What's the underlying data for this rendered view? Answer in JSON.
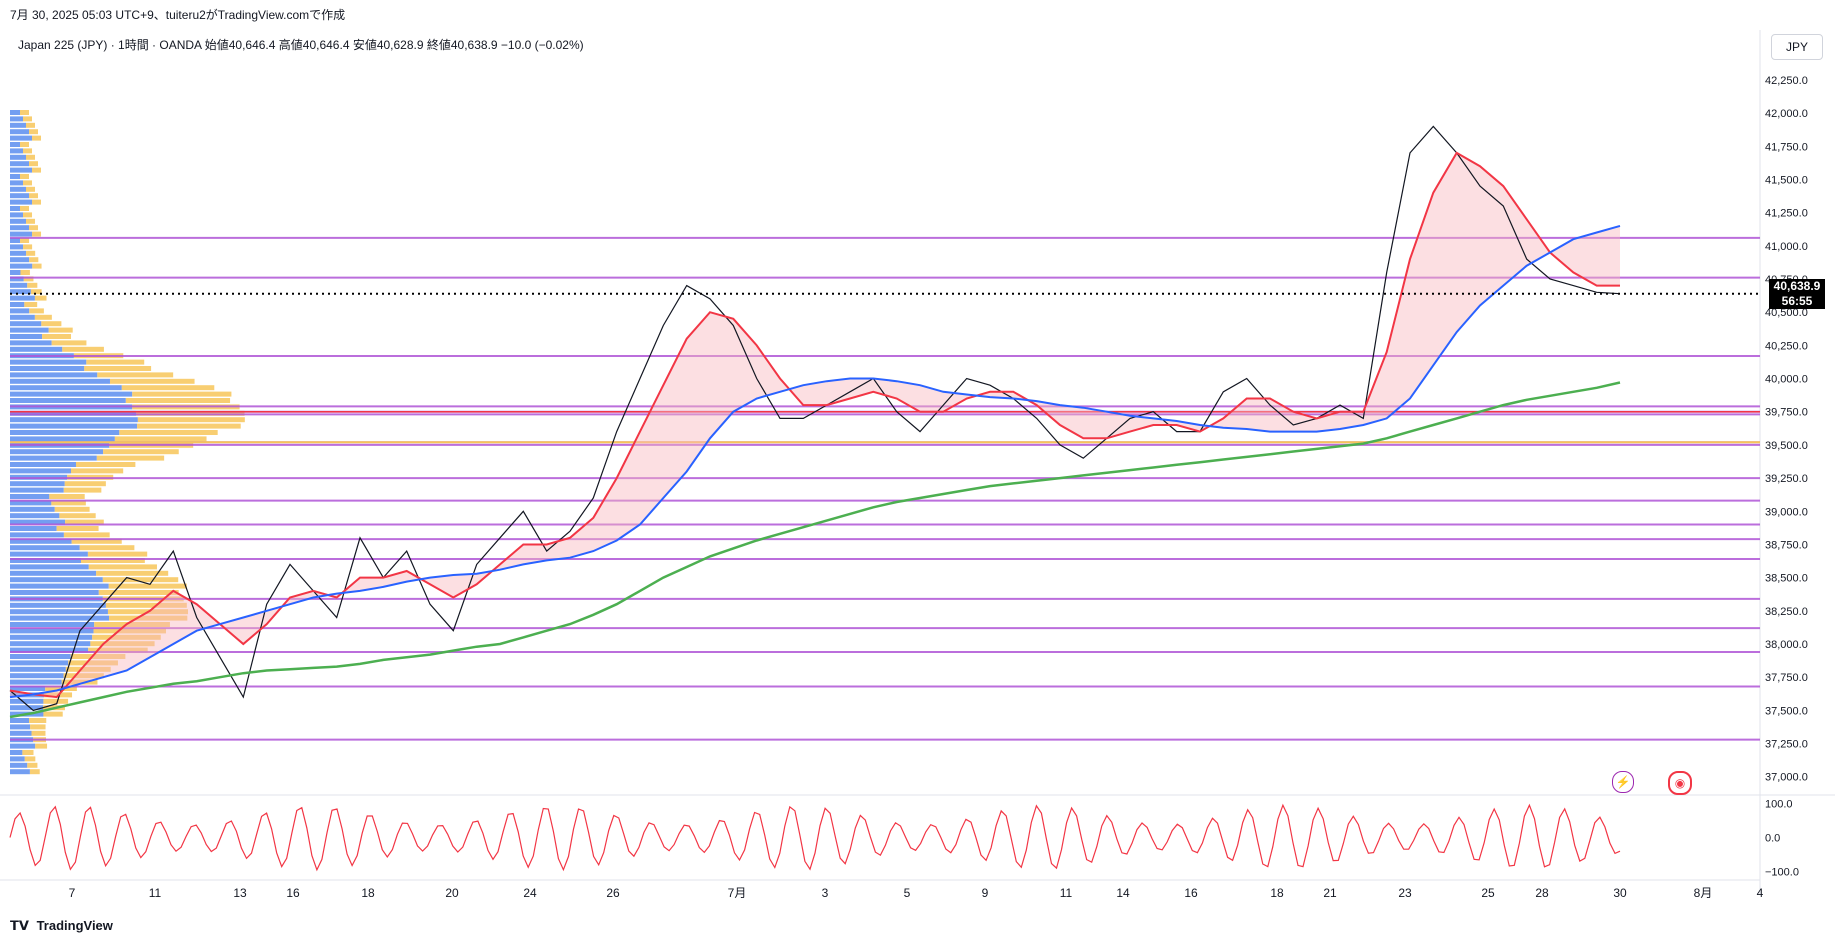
{
  "header": {
    "snapshot_line": "7月 30, 2025 05:03 UTC+9、tuiteru2がTradingView.comで作成",
    "symbol_line": "Japan 225 (JPY) · 1時間 · OANDA 始値40,646.4 高値40,646.4 安値40,628.9 終値40,638.9 −10.0 (−0.02%)",
    "currency": "JPY"
  },
  "last_price": {
    "value": "40,638.9",
    "countdown": "56:55"
  },
  "brand": {
    "name": "TradingView",
    "logo": "tv-logo"
  },
  "colors": {
    "ema_fast": "#f23645",
    "ema_mid": "#2962ff",
    "sma_long": "#4caf50",
    "hline": "#b055d6",
    "vp_buy": "#5b8def",
    "vp_sell": "#f7c559",
    "osc": "#f23645"
  },
  "chart_data": {
    "type": "line",
    "title": "",
    "xlabel": "",
    "ylabel": "",
    "y_ticks": [
      "42,250.0",
      "42,000.0",
      "41,750.0",
      "41,500.0",
      "41,250.0",
      "41,000.0",
      "40,750.0",
      "40,500.0",
      "40,250.0",
      "40,000.0",
      "39,750.0",
      "39,500.0",
      "39,250.0",
      "39,000.0",
      "38,750.0",
      "38,500.0",
      "38,250.0",
      "38,000.0",
      "37,750.0",
      "37,500.0",
      "37,250.0",
      "37,000.0"
    ],
    "ylim": [
      36900,
      42400
    ],
    "x_ticks": [
      "7",
      "11",
      "13",
      "16",
      "18",
      "20",
      "24",
      "26",
      "7月",
      "3",
      "5",
      "9",
      "11",
      "14",
      "16",
      "18",
      "21",
      "23",
      "25",
      "28",
      "30",
      "8月",
      "4"
    ],
    "series": [
      {
        "values": [
          37650,
          37500,
          37550,
          38100,
          38300,
          38500,
          38450,
          38700,
          38200,
          37900,
          37600,
          38300,
          38600,
          38400,
          38200,
          38800,
          38500,
          38700,
          38300,
          38100,
          38600,
          38800,
          39000,
          38700,
          38850,
          39100,
          39600,
          40000,
          40400,
          40700,
          40600,
          40400,
          40000,
          39700,
          39700,
          39800,
          39900,
          40000,
          39750,
          39600,
          39800,
          40000,
          39950,
          39850,
          39700,
          39500,
          39400,
          39550,
          39700,
          39750,
          39600,
          39600,
          39900,
          40000,
          39800,
          39650,
          39700,
          39800,
          39700,
          40800,
          41700,
          41900,
          41700,
          41450,
          41300,
          40900,
          40750,
          40700,
          40650,
          40638.9
        ]
      },
      {
        "values": [
          37650,
          37620,
          37600,
          37800,
          38000,
          38150,
          38250,
          38400,
          38300,
          38150,
          38000,
          38150,
          38350,
          38400,
          38350,
          38500,
          38500,
          38550,
          38450,
          38350,
          38450,
          38600,
          38750,
          38750,
          38800,
          38950,
          39250,
          39600,
          39950,
          40300,
          40500,
          40450,
          40250,
          40000,
          39800,
          39800,
          39850,
          39900,
          39850,
          39750,
          39750,
          39850,
          39900,
          39900,
          39800,
          39650,
          39550,
          39550,
          39600,
          39650,
          39650,
          39600,
          39700,
          39850,
          39850,
          39750,
          39700,
          39750,
          39750,
          40200,
          40900,
          41400,
          41700,
          41600,
          41450,
          41200,
          40950,
          40800,
          40700,
          40700
        ]
      },
      {
        "values": [
          37600,
          37620,
          37650,
          37700,
          37750,
          37800,
          37900,
          38000,
          38100,
          38150,
          38200,
          38250,
          38300,
          38350,
          38380,
          38400,
          38430,
          38470,
          38500,
          38520,
          38530,
          38560,
          38600,
          38630,
          38650,
          38700,
          38780,
          38900,
          39100,
          39300,
          39550,
          39750,
          39850,
          39900,
          39950,
          39980,
          40000,
          40000,
          39980,
          39950,
          39900,
          39880,
          39860,
          39850,
          39830,
          39800,
          39780,
          39750,
          39720,
          39700,
          39680,
          39650,
          39630,
          39620,
          39600,
          39600,
          39600,
          39620,
          39650,
          39700,
          39850,
          40100,
          40350,
          40550,
          40700,
          40850,
          40950,
          41050,
          41100,
          41150
        ]
      },
      {
        "values": [
          37450,
          37480,
          37520,
          37560,
          37600,
          37640,
          37670,
          37700,
          37720,
          37750,
          37780,
          37800,
          37810,
          37820,
          37830,
          37850,
          37880,
          37900,
          37920,
          37950,
          37980,
          38000,
          38050,
          38100,
          38150,
          38220,
          38300,
          38400,
          38500,
          38580,
          38660,
          38720,
          38780,
          38830,
          38880,
          38930,
          38980,
          39030,
          39070,
          39100,
          39130,
          39160,
          39190,
          39210,
          39230,
          39250,
          39270,
          39290,
          39310,
          39330,
          39350,
          39370,
          39390,
          39410,
          39430,
          39450,
          39470,
          39490,
          39510,
          39550,
          39600,
          39650,
          39700,
          39750,
          39800,
          39840,
          39870,
          39900,
          39930,
          39970
        ]
      }
    ],
    "hlines": [
      41060,
      40760,
      40170,
      39790,
      39750,
      39730,
      39520,
      39500,
      39250,
      39080,
      38900,
      38790,
      38640,
      38340,
      38120,
      37940,
      37680,
      37280
    ],
    "last_value": 40638.9,
    "oscillator": {
      "ticks": [
        "100.0",
        "0.0",
        "−100.0"
      ],
      "ylim": [
        -110,
        110
      ]
    },
    "volume_profile": {
      "type": "horizontal volume profile",
      "colors": [
        "#5b8def",
        "#f7c559"
      ]
    }
  }
}
